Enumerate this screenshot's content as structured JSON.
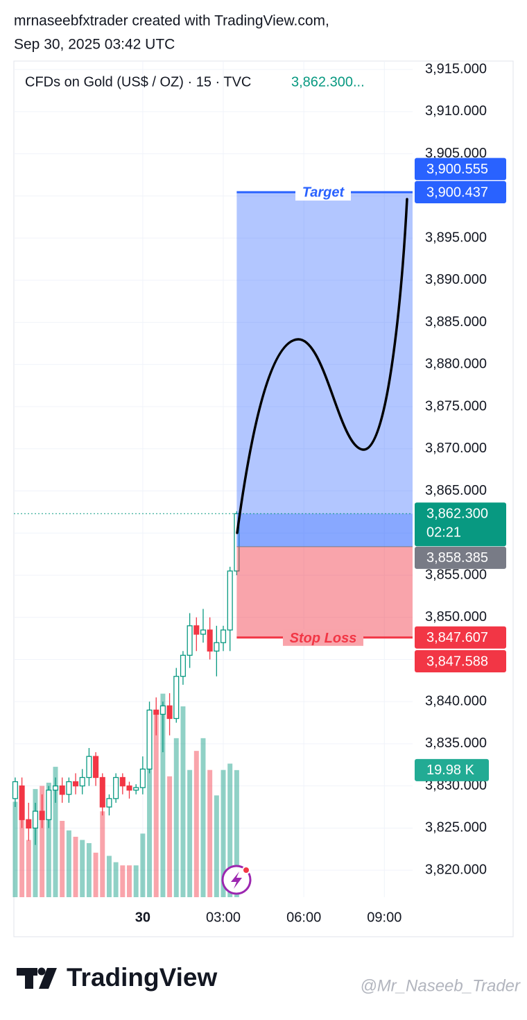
{
  "header": {
    "author_line": "mrnaseebfxtrader created with TradingView.com,",
    "date_line": "Sep 30, 2025 03:42 UTC"
  },
  "chart_data": {
    "type": "candlestick",
    "symbol": "CFDs on Gold (US$ / OZ) · 15 · TVC",
    "legend_price": "3,862.300...",
    "x": [
      -4.75,
      -4.5,
      -4.25,
      -4,
      -3.75,
      -3.5,
      -3.25,
      -3,
      -2.75,
      -2.5,
      -2.25,
      -2,
      -1.75,
      -1.5,
      -1.25,
      -1,
      -0.75,
      -0.5,
      -0.25,
      0,
      0.25,
      0.5,
      0.75,
      1,
      1.25,
      1.5,
      1.75,
      2,
      2.25,
      2.5,
      2.75,
      3,
      3.25,
      3.5
    ],
    "open": [
      3828.5,
      3830,
      3826,
      3825,
      3827,
      3826,
      3829.5,
      3830,
      3829,
      3830.5,
      3830,
      3831,
      3833.5,
      3831,
      3827.5,
      3828.5,
      3831,
      3830,
      3829.5,
      3829.8,
      3832,
      3839,
      3838.5,
      3839.5,
      3838,
      3843,
      3845.5,
      3849,
      3848,
      3848.5,
      3846,
      3847,
      3848.5,
      3855.5
    ],
    "high": [
      3831,
      3831,
      3828,
      3828,
      3829,
      3830,
      3831,
      3831,
      3831,
      3831.5,
      3832,
      3834.5,
      3834,
      3831.5,
      3829,
      3831.5,
      3831.5,
      3830.5,
      3830.2,
      3833.5,
      3840,
      3840.5,
      3840,
      3841,
      3844,
      3846,
      3850.5,
      3850,
      3851,
      3850,
      3849,
      3849,
      3856,
      3862.6
    ],
    "low": [
      3827.5,
      3825,
      3823.5,
      3823,
      3825,
      3825,
      3828,
      3828,
      3828,
      3829,
      3829,
      3830,
      3830,
      3826.5,
      3826.5,
      3828,
      3829,
      3828.5,
      3829,
      3829,
      3831.5,
      3836,
      3834,
      3836,
      3837.5,
      3842,
      3844,
      3846,
      3847,
      3845,
      3843,
      3846,
      3846,
      3855
    ],
    "close": [
      3830.5,
      3826,
      3825,
      3827,
      3826,
      3829.5,
      3830,
      3829,
      3830.5,
      3830,
      3831,
      3833.5,
      3831,
      3827.5,
      3828.5,
      3831,
      3830,
      3829.5,
      3829.8,
      3832,
      3839,
      3838.5,
      3839.5,
      3838,
      3843,
      3845.5,
      3849,
      3848,
      3848.5,
      3846,
      3847,
      3848.5,
      3855.5,
      3862.3
    ],
    "volume": [
      15000,
      17500,
      9000,
      17000,
      17500,
      18000,
      20500,
      12000,
      10500,
      9500,
      9000,
      8500,
      7000,
      13500,
      6500,
      5500,
      5000,
      5000,
      5000,
      10000,
      23000,
      29000,
      32000,
      19000,
      25000,
      30000,
      20000,
      23000,
      25000,
      20000,
      16000,
      20000,
      21000,
      19980
    ],
    "volume_last_label": "19.98 K",
    "vlim": [
      0,
      36000
    ],
    "up_color": "#089981",
    "down_color": "#f23645",
    "xlim": [
      -4.8,
      10.05
    ],
    "xticks": [
      {
        "value": 0,
        "label": "30"
      },
      {
        "value": 3,
        "label": "03:00"
      },
      {
        "value": 6,
        "label": "06:00"
      },
      {
        "value": 9,
        "label": "09:00"
      }
    ],
    "ylim": [
      3816.8,
      3916
    ],
    "yticks": [
      {
        "value": 3820,
        "label": "3,820.000"
      },
      {
        "value": 3825,
        "label": "3,825.000"
      },
      {
        "value": 3830,
        "label": "3,830.000"
      },
      {
        "value": 3835,
        "label": "3,835.000"
      },
      {
        "value": 3840,
        "label": "3,840.000"
      },
      {
        "value": 3845,
        "label": "3,845.000"
      },
      {
        "value": 3850,
        "label": "3,850.000"
      },
      {
        "value": 3855,
        "label": "3,855.000"
      },
      {
        "value": 3860,
        "label": "3,860.000"
      },
      {
        "value": 3865,
        "label": "3,865.000"
      },
      {
        "value": 3870,
        "label": "3,870.000"
      },
      {
        "value": 3875,
        "label": "3,875.000"
      },
      {
        "value": 3880,
        "label": "3,880.000"
      },
      {
        "value": 3885,
        "label": "3,885.000"
      },
      {
        "value": 3890,
        "label": "3,890.000"
      },
      {
        "value": 3895,
        "label": "3,895.000"
      },
      {
        "value": 3900,
        "label": "3,900.000"
      },
      {
        "value": 3905,
        "label": "3,905.000"
      },
      {
        "value": 3910,
        "label": "3,910.000"
      },
      {
        "value": 3915,
        "label": "3,915.000"
      }
    ],
    "grid": true,
    "price_labels": [
      {
        "value": 3900.555,
        "label": "3,900.555",
        "color": "#2962ff"
      },
      {
        "value": 3900.437,
        "label": "3,900.437",
        "color": "#2962ff"
      },
      {
        "value": 3862.3,
        "label": "3,862.300",
        "color": "#089981"
      },
      {
        "value": 3858.385,
        "label": "3,858.385",
        "color": "#787b86"
      },
      {
        "value": 3847.607,
        "label": "3,847.607",
        "color": "#f23645"
      },
      {
        "value": 3847.588,
        "label": "3,847.588",
        "color": "#f23645"
      }
    ],
    "countdown": "02:21",
    "target_label": "Target",
    "stop_label": "Stop Loss"
  },
  "footer": {
    "logo": "TradingView",
    "watermark": "@Mr_Naseeb_Trader"
  }
}
